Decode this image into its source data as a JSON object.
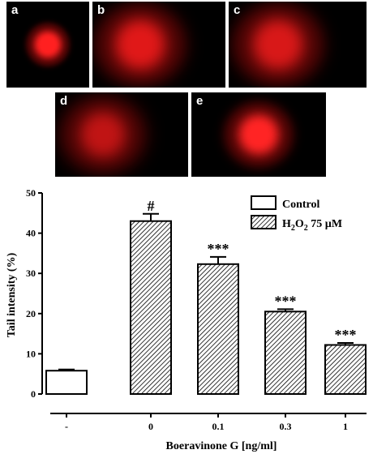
{
  "panels": [
    {
      "letter": "a",
      "blob_color": "#ff2020",
      "spread": "compact"
    },
    {
      "letter": "b",
      "blob_color": "#e01818",
      "spread": "diffuse"
    },
    {
      "letter": "c",
      "blob_color": "#d81818",
      "spread": "diffuse"
    },
    {
      "letter": "d",
      "blob_color": "#c01414",
      "spread": "faint"
    },
    {
      "letter": "e",
      "blob_color": "#ff2424",
      "spread": "bright"
    }
  ],
  "chart_data": {
    "type": "bar",
    "xlabel": "Boeravinone G [ng/ml]",
    "ylabel": "Tail intensity (%)",
    "ylim": [
      0,
      50
    ],
    "yticks": [
      "0",
      "10",
      "20",
      "30",
      "40",
      "50"
    ],
    "categories": [
      "-",
      "0",
      "0.1",
      "0.3",
      "1"
    ],
    "values": [
      5.8,
      43,
      32.3,
      20.5,
      12.2
    ],
    "errors": [
      0.3,
      1.8,
      1.8,
      0.6,
      0.5
    ],
    "series_type": [
      "Control",
      "H2O2",
      "H2O2",
      "H2O2",
      "H2O2"
    ],
    "significance": [
      "",
      "#",
      "***",
      "***",
      "***"
    ],
    "legend": {
      "position": "top-right",
      "items": [
        {
          "label": "Control",
          "fill": "white"
        },
        {
          "label_main": "H",
          "label_sub": "2",
          "label_main2": "O",
          "label_sub2": "2",
          "label_tail": " 75 µM",
          "fill": "hatched"
        }
      ]
    },
    "colors": {
      "bar_stroke": "#000000",
      "hatch": "#000000"
    }
  }
}
